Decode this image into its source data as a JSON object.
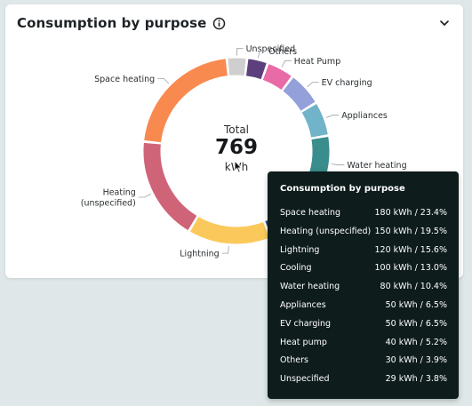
{
  "card": {
    "title": "Consumption by purpose"
  },
  "icons": {
    "info": "info-icon",
    "collapse": "chevron-down-icon"
  },
  "center": {
    "total_label": "Total",
    "total_value": "769",
    "unit": "kWh"
  },
  "tooltip": {
    "title": "Consumption by purpose",
    "rows": [
      {
        "name": "Space heating",
        "value": "180 kWh / 23.4%"
      },
      {
        "name": "Heating (unspecified)",
        "value": "150 kWh / 19.5%"
      },
      {
        "name": "Lightning",
        "value": "120 kWh / 15.6%"
      },
      {
        "name": "Cooling",
        "value": "100 kWh / 13.0%"
      },
      {
        "name": "Water heating",
        "value": "80 kWh / 10.4%"
      },
      {
        "name": "Appliances",
        "value": "50 kWh / 6.5%"
      },
      {
        "name": "EV charging",
        "value": "50 kWh / 6.5%"
      },
      {
        "name": "Heat pump",
        "value": "40 kWh / 5.2%"
      },
      {
        "name": "Others",
        "value": "30 kWh / 3.9%"
      },
      {
        "name": "Unspecified",
        "value": "29 kWh / 3.8%"
      }
    ]
  },
  "chart_data": {
    "type": "pie",
    "title": "Consumption by purpose",
    "unit": "kWh",
    "total": 769,
    "series": [
      {
        "name": "Unspecified",
        "label": "Unspecified",
        "value": 29,
        "color": "#cfcfcf"
      },
      {
        "name": "Others",
        "label": "Others",
        "value": 30,
        "color": "#5c3f7c"
      },
      {
        "name": "Heat pump",
        "label": "Heat Pump",
        "value": 40,
        "color": "#e86aa7"
      },
      {
        "name": "EV charging",
        "label": "EV charging",
        "value": 50,
        "color": "#93a0d9"
      },
      {
        "name": "Appliances",
        "label": "Appliances",
        "value": 50,
        "color": "#71b3c9"
      },
      {
        "name": "Water heating",
        "label": "Water heating",
        "value": 80,
        "color": "#3a8d8d"
      },
      {
        "name": "Cooling",
        "label": "Cooling",
        "value": 100,
        "color": "#3b4a8a"
      },
      {
        "name": "Lightning",
        "label": "Lightning",
        "value": 120,
        "color": "#fbc95b"
      },
      {
        "name": "Heating (unspecified)",
        "label": "Heating\n(unspecified)",
        "value": 150,
        "color": "#cf6478"
      },
      {
        "name": "Space heating",
        "label": "Space heating",
        "value": 180,
        "color": "#f88a50"
      }
    ]
  }
}
